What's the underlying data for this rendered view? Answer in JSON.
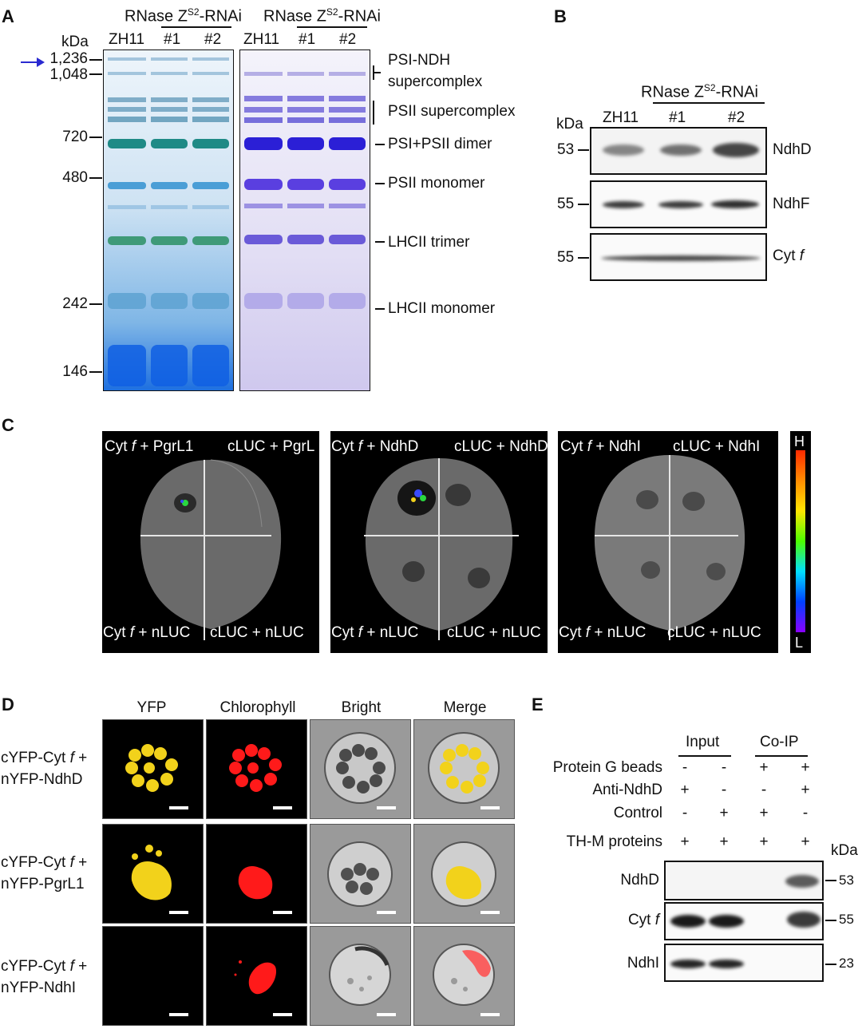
{
  "panel_a": {
    "label": "A",
    "unit": "kDa",
    "header_left": "RNase Z",
    "header_sup": "S2",
    "header_suffix": "-RNAi",
    "lanes": [
      "ZH11",
      "#1",
      "#2"
    ],
    "markers": [
      "1,236",
      "1,048",
      "720",
      "480",
      "242",
      "146"
    ],
    "complexes": [
      "PSI-NDH",
      "supercomplex",
      "PSII supercomplex",
      "PSI+PSII dimer",
      "PSII monomer",
      "LHCII trimer",
      "LHCII monomer"
    ]
  },
  "panel_b": {
    "label": "B",
    "unit": "kDa",
    "header_left": "RNase Z",
    "header_sup": "S2",
    "header_suffix": "-RNAi",
    "lanes": [
      "ZH11",
      "#1",
      "#2"
    ],
    "rows": [
      {
        "marker": "53",
        "protein": "NdhD"
      },
      {
        "marker": "55",
        "protein": "NdhF"
      },
      {
        "marker": "55",
        "protein": "Cyt ",
        "protein_italic": "f"
      }
    ]
  },
  "panel_c": {
    "label": "C",
    "scale_high": "H",
    "scale_low": "L",
    "leaves": [
      {
        "tl_a": "Cyt ",
        "tl_i": "f",
        "tl_b": " + PgrL1",
        "tr": "cLUC + PgrL",
        "bl_a": "Cyt ",
        "bl_i": "f",
        "bl_b": " + nLUC",
        "br": "cLUC + nLUC"
      },
      {
        "tl_a": "Cyt ",
        "tl_i": "f",
        "tl_b": " + NdhD",
        "tr": "cLUC + NdhD",
        "bl_a": "Cyt ",
        "bl_i": "f",
        "bl_b": " + nLUC",
        "br": "cLUC + nLUC"
      },
      {
        "tl_a": "Cyt ",
        "tl_i": "f",
        "tl_b": " + NdhI",
        "tr": "cLUC + NdhI",
        "bl_a": "Cyt ",
        "bl_i": "f",
        "bl_b": "  + nLUC",
        "br": "cLUC + nLUC"
      }
    ]
  },
  "panel_d": {
    "label": "D",
    "columns": [
      "YFP",
      "Chlorophyll",
      "Bright",
      "Merge"
    ],
    "rows": [
      {
        "line1_a": "cYFP-Cyt ",
        "line1_i": "f",
        "line1_b": " +",
        "line2": "nYFP-NdhD"
      },
      {
        "line1_a": "cYFP-Cyt ",
        "line1_i": "f",
        "line1_b": " +",
        "line2": "nYFP-PgrL1"
      },
      {
        "line1_a": "cYFP-Cyt ",
        "line1_i": "f",
        "line1_b": " +",
        "line2": "nYFP-NdhI"
      }
    ]
  },
  "panel_e": {
    "label": "E",
    "group_input": "Input",
    "group_coip": "Co-IP",
    "unit": "kDa",
    "conditions": [
      {
        "name": "Protein G beads",
        "signs": [
          "-",
          "-",
          "+",
          "+"
        ]
      },
      {
        "name": "Anti-NdhD",
        "signs": [
          "+",
          "-",
          "-",
          "+"
        ]
      },
      {
        "name": "Control",
        "signs": [
          "-",
          "+",
          "+",
          "-"
        ]
      },
      {
        "name": "TH-M proteins",
        "signs": [
          "+",
          "+",
          "+",
          "+"
        ]
      }
    ],
    "blots": [
      {
        "protein_a": "NdhD",
        "protein_i": "",
        "marker": "53"
      },
      {
        "protein_a": "Cyt ",
        "protein_i": "f",
        "marker": "55"
      },
      {
        "protein_a": "NdhI",
        "protein_i": "",
        "marker": "23"
      }
    ]
  },
  "colors": {
    "marker_arrow": "#2a2ad0",
    "yfp": "#f2d21b",
    "chlorophyll": "#ff1a1a"
  }
}
